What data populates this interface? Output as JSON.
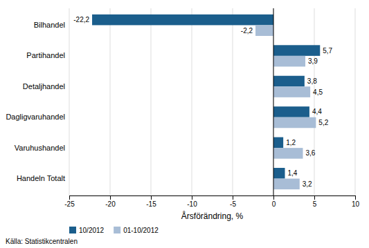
{
  "chart_data": {
    "type": "bar",
    "orientation": "horizontal",
    "categories": [
      "Handeln Totalt",
      "Varuhushandel",
      "Dagligvaruhandel",
      "Detaljhandel",
      "Partihandel",
      "Bilhandel"
    ],
    "series": [
      {
        "name": "10/2012",
        "color": "#1B5E8C",
        "values": [
          1.4,
          1.2,
          4.4,
          3.8,
          5.7,
          -22.2
        ],
        "value_labels": [
          "1,4",
          "1,2",
          "4,4",
          "3,8",
          "5,7",
          "-22,2"
        ]
      },
      {
        "name": "01-10/2012",
        "color": "#A8BDD6",
        "values": [
          3.2,
          3.6,
          5.2,
          4.5,
          3.9,
          -2.2
        ],
        "value_labels": [
          "3,2",
          "3,6",
          "5,2",
          "4,5",
          "3,9",
          "-2,2"
        ]
      }
    ],
    "xlabel": "Årsförändring, %",
    "annotations": [
      "Källa: Statistikcentralen"
    ],
    "xlim": [
      -25,
      10
    ],
    "xticks": [
      -25,
      -20,
      -15,
      -10,
      -5,
      0,
      5,
      10
    ],
    "grid": true,
    "legend": "lower left",
    "data_labels": true
  }
}
